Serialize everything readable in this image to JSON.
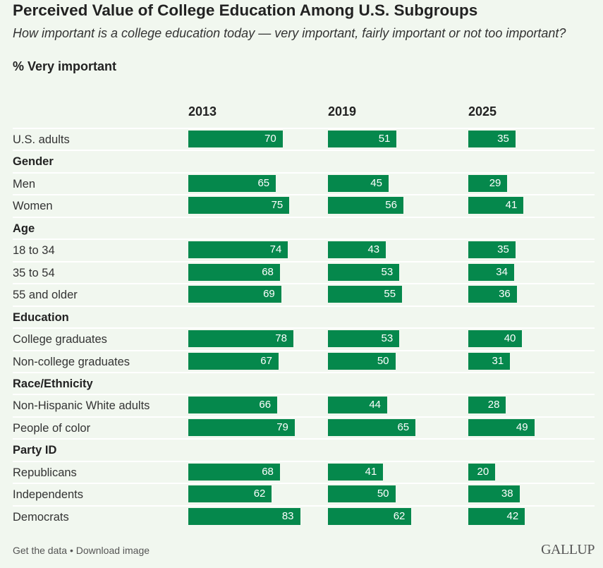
{
  "chart_data": {
    "type": "bar",
    "title": "Perceived Value of College Education Among U.S. Subgroups",
    "subtitle": "How important is a college education today — very important, fairly important or not too important?",
    "measure": "% Very important",
    "columns": [
      "2013",
      "2019",
      "2025"
    ],
    "xlim": [
      0,
      100
    ],
    "rows": [
      {
        "label": "U.S. adults",
        "values": [
          70,
          51,
          35
        ]
      },
      {
        "label": "Gender",
        "group": true
      },
      {
        "label": "Men",
        "values": [
          65,
          45,
          29
        ]
      },
      {
        "label": "Women",
        "values": [
          75,
          56,
          41
        ]
      },
      {
        "label": "Age",
        "group": true
      },
      {
        "label": "18 to 34",
        "values": [
          74,
          43,
          35
        ]
      },
      {
        "label": "35 to 54",
        "values": [
          68,
          53,
          34
        ]
      },
      {
        "label": "55 and older",
        "values": [
          69,
          55,
          36
        ]
      },
      {
        "label": "Education",
        "group": true
      },
      {
        "label": "College graduates",
        "values": [
          78,
          53,
          40
        ]
      },
      {
        "label": "Non-college graduates",
        "values": [
          67,
          50,
          31
        ]
      },
      {
        "label": "Race/Ethnicity",
        "group": true
      },
      {
        "label": "Non-Hispanic White adults",
        "values": [
          66,
          44,
          28
        ]
      },
      {
        "label": "People of color",
        "values": [
          79,
          65,
          49
        ]
      },
      {
        "label": "Party ID",
        "group": true
      },
      {
        "label": "Republicans",
        "values": [
          68,
          41,
          20
        ]
      },
      {
        "label": "Independents",
        "values": [
          62,
          50,
          38
        ]
      },
      {
        "label": "Democrats",
        "values": [
          83,
          62,
          42
        ]
      }
    ],
    "bar_color": "#05884c"
  },
  "footer": {
    "get_data": "Get the data",
    "separator": " • ",
    "download": "Download image"
  },
  "logo": "GALLUP"
}
